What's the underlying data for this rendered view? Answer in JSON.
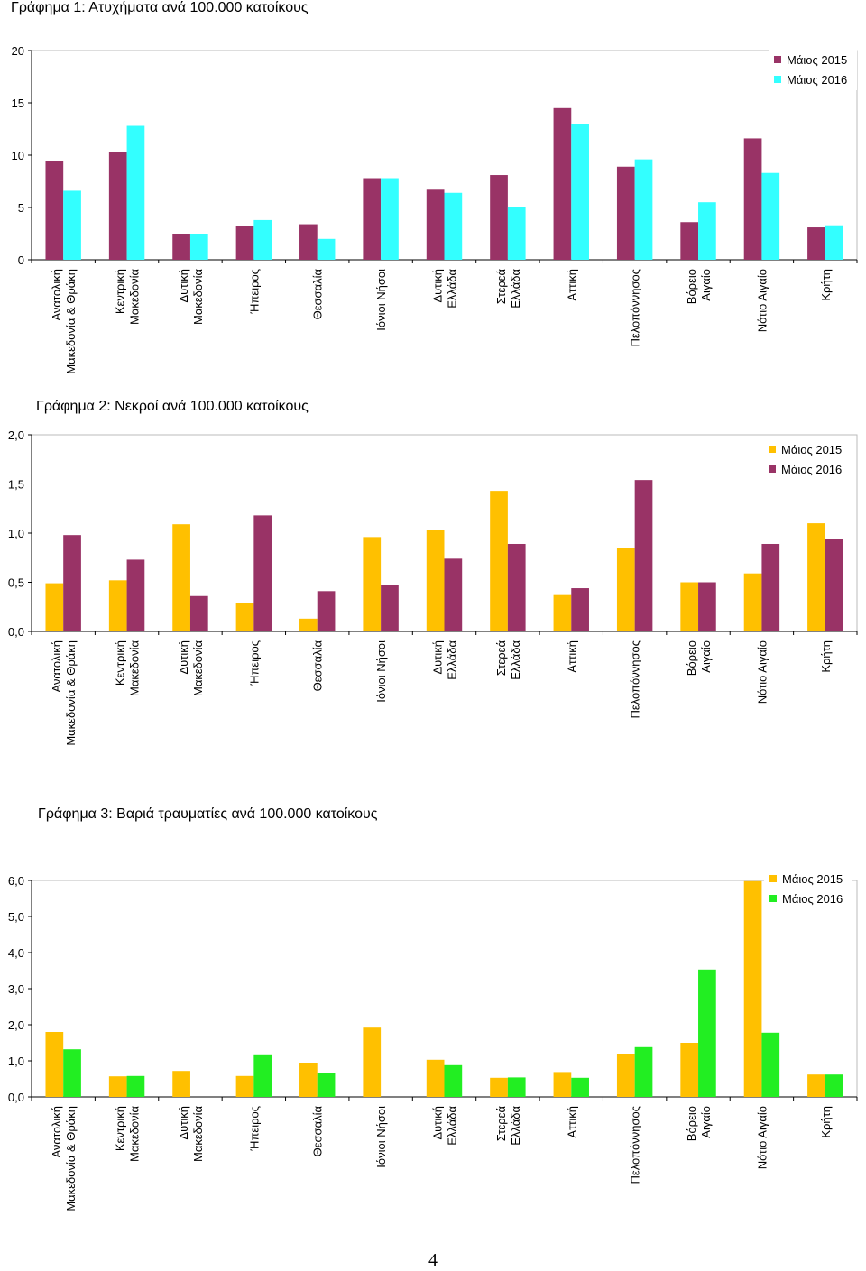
{
  "chart_data": [
    {
      "type": "bar",
      "title": "Γράφημα 1: Ατυχήματα ανά 100.000 κατοίκους",
      "categories": [
        "Ανατολική Μακεδονία & Θράκη",
        "Κεντρική Μακεδονία",
        "Δυτική Μακεδονία",
        "Ήπειρος",
        "Θεσσαλία",
        "Ιόνιοι Νήσοι",
        "Δυτική Ελλάδα",
        "Στερεά Ελλάδα",
        "Αττική",
        "Πελοπόννησος",
        "Βόρειο Αιγαίο",
        "Νότιο Αιγαίο",
        "Κρήτη"
      ],
      "series": [
        {
          "name": "Μάιος 2015",
          "color": "#993366",
          "values": [
            9.4,
            10.3,
            2.5,
            3.2,
            3.4,
            7.8,
            6.7,
            8.1,
            14.5,
            8.9,
            3.6,
            11.6,
            3.1
          ]
        },
        {
          "name": "Μάιος 2016",
          "color": "#33FFFF",
          "values": [
            6.6,
            12.8,
            2.5,
            3.8,
            2.0,
            7.8,
            6.4,
            5.0,
            13.0,
            9.6,
            5.5,
            8.3,
            3.3
          ]
        }
      ],
      "ylim": [
        0,
        20
      ],
      "yticks": [
        "0",
        "5",
        "10",
        "15",
        "20"
      ],
      "xlabel": "",
      "ylabel": "",
      "grid": false,
      "legend": "top-right"
    },
    {
      "type": "bar",
      "title": "Γράφημα 2: Νεκροί ανά 100.000 κατοίκους",
      "categories": [
        "Ανατολική Μακεδονία & Θράκη",
        "Κεντρική Μακεδονία",
        "Δυτική Μακεδονία",
        "Ήπειρος",
        "Θεσσαλία",
        "Ιόνιοι Νήσοι",
        "Δυτική Ελλάδα",
        "Στερεά Ελλάδα",
        "Αττική",
        "Πελοπόννησος",
        "Βόρειο Αιγαίο",
        "Νότιο Αιγαίο",
        "Κρήτη"
      ],
      "series": [
        {
          "name": "Μάιος 2015",
          "color": "#FFC000",
          "values": [
            0.49,
            0.52,
            1.09,
            0.29,
            0.13,
            0.96,
            1.03,
            1.43,
            0.37,
            0.85,
            0.5,
            0.59,
            1.1
          ]
        },
        {
          "name": "Μάιος 2016",
          "color": "#993366",
          "values": [
            0.98,
            0.73,
            0.36,
            1.18,
            0.41,
            0.47,
            0.74,
            0.89,
            0.44,
            1.54,
            0.5,
            0.89,
            0.94
          ]
        }
      ],
      "ylim": [
        0,
        2
      ],
      "yticks": [
        "0,0",
        "0,5",
        "1,0",
        "1,5",
        "2,0"
      ],
      "xlabel": "",
      "ylabel": "",
      "grid": false,
      "legend": "top-right"
    },
    {
      "type": "bar",
      "title": "Γράφημα 3: Βαριά τραυματίες ανά 100.000 κατοίκους",
      "categories": [
        "Ανατολική Μακεδονία & Θράκη",
        "Κεντρική Μακεδονία",
        "Δυτική Μακεδονία",
        "Ήπειρος",
        "Θεσσαλία",
        "Ιόνιοι Νήσοι",
        "Δυτική Ελλάδα",
        "Στερεά Ελλάδα",
        "Αττική",
        "Πελοπόννησος",
        "Βόρειο Αιγαίο",
        "Νότιο Αιγαίο",
        "Κρήτη"
      ],
      "series": [
        {
          "name": "Μάιος 2015",
          "color": "#FFC000",
          "values": [
            1.8,
            0.57,
            0.72,
            0.58,
            0.95,
            1.92,
            1.03,
            0.53,
            0.69,
            1.2,
            1.5,
            5.98,
            0.62
          ]
        },
        {
          "name": "Μάιος 2016",
          "color": "#22EE22",
          "values": [
            1.32,
            0.58,
            0.0,
            1.18,
            0.67,
            0.0,
            0.88,
            0.54,
            0.53,
            1.38,
            3.53,
            1.78,
            0.62
          ]
        }
      ],
      "ylim": [
        0,
        6
      ],
      "yticks": [
        "0,0",
        "1,0",
        "2,0",
        "3,0",
        "4,0",
        "5,0",
        "6,0"
      ],
      "xlabel": "",
      "ylabel": "",
      "grid": false,
      "legend": "top-right"
    }
  ],
  "page_number": "4"
}
